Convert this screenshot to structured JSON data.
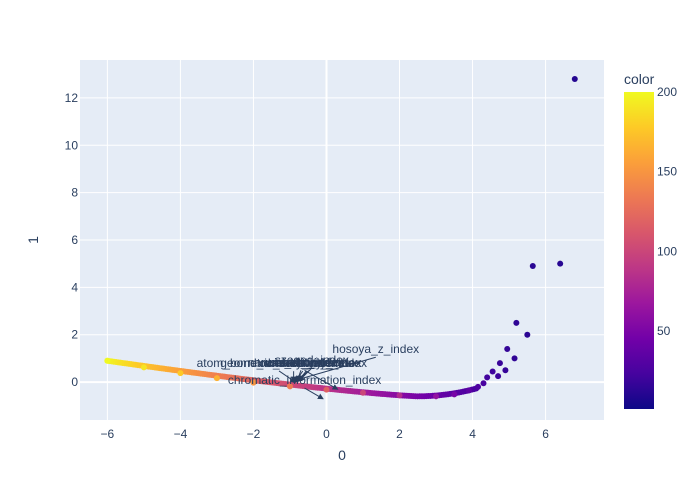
{
  "chart_data": {
    "type": "scatter",
    "xlabel": "0",
    "ylabel": "1",
    "xlim": [
      -6.75,
      7.6
    ],
    "ylim": [
      -1.6,
      13.6
    ],
    "x_ticks": [
      -6,
      -4,
      -2,
      0,
      2,
      4,
      6
    ],
    "y_ticks": [
      0,
      2,
      4,
      6,
      8,
      10,
      12
    ],
    "grid": true,
    "colorbar": {
      "title": "color",
      "range": [
        1,
        200
      ],
      "ticks": [
        50,
        100,
        150,
        200
      ],
      "colorscale": [
        "#0d0887",
        "#46039f",
        "#7201a8",
        "#9c179e",
        "#bd3786",
        "#d8576b",
        "#ed7953",
        "#fb9f3a",
        "#fdca26",
        "#f0f921"
      ]
    },
    "curve": {
      "x_start": -6.0,
      "x_end": 4.1,
      "color_start": 200,
      "color_end": 25,
      "note": "dense curve of points, y = 0.9 at x=-6 decreasing to minimum about -0.6 near x=2.5"
    },
    "points": [
      {
        "x": -6.0,
        "y": 0.9,
        "c": 200
      },
      {
        "x": -5.0,
        "y": 0.62,
        "c": 190
      },
      {
        "x": -4.0,
        "y": 0.38,
        "c": 178
      },
      {
        "x": -3.0,
        "y": 0.17,
        "c": 165
      },
      {
        "x": -2.0,
        "y": -0.02,
        "c": 150
      },
      {
        "x": -1.0,
        "y": -0.18,
        "c": 135
      },
      {
        "x": 0.0,
        "y": -0.32,
        "c": 118
      },
      {
        "x": 1.0,
        "y": -0.45,
        "c": 100
      },
      {
        "x": 2.0,
        "y": -0.56,
        "c": 82
      },
      {
        "x": 3.0,
        "y": -0.6,
        "c": 62
      },
      {
        "x": 3.5,
        "y": -0.52,
        "c": 48
      },
      {
        "x": 3.9,
        "y": -0.35,
        "c": 35
      },
      {
        "x": 4.15,
        "y": -0.2,
        "c": 28
      },
      {
        "x": 4.3,
        "y": -0.05,
        "c": 25
      },
      {
        "x": 4.4,
        "y": 0.2,
        "c": 22
      },
      {
        "x": 4.55,
        "y": 0.45,
        "c": 20
      },
      {
        "x": 4.7,
        "y": 0.25,
        "c": 19
      },
      {
        "x": 4.75,
        "y": 0.8,
        "c": 18
      },
      {
        "x": 4.9,
        "y": 0.5,
        "c": 17
      },
      {
        "x": 4.95,
        "y": 1.4,
        "c": 16
      },
      {
        "x": 5.15,
        "y": 1.0,
        "c": 15
      },
      {
        "x": 5.2,
        "y": 2.5,
        "c": 14
      },
      {
        "x": 5.5,
        "y": 2.0,
        "c": 13
      },
      {
        "x": 5.65,
        "y": 4.9,
        "c": 12
      },
      {
        "x": 6.4,
        "y": 5.0,
        "c": 11
      },
      {
        "x": 6.8,
        "y": 12.8,
        "c": 10
      }
    ],
    "annotations": [
      {
        "text": "hosoya_z_index",
        "tail": [
          1.35,
          1.05
        ],
        "head": [
          -0.8,
          0.1
        ]
      },
      {
        "text": "szeged_index",
        "tail": [
          -0.4,
          0.6
        ],
        "head": [
          -0.75,
          0.05
        ]
      },
      {
        "text": "randic_index",
        "tail": [
          -0.45,
          0.52
        ],
        "head": [
          -0.8,
          0.05
        ]
      },
      {
        "text": "schultz_index",
        "tail": [
          -0.55,
          0.48
        ],
        "head": [
          -0.75,
          0.08
        ]
      },
      {
        "text": "narumi_simple_index",
        "tail": [
          -0.6,
          0.5
        ],
        "head": [
          0.3,
          -0.3
        ]
      },
      {
        "text": "harary_index",
        "tail": [
          -0.65,
          0.47
        ],
        "head": [
          -0.85,
          0.02
        ]
      },
      {
        "text": "connectivity_index",
        "tail": [
          -0.5,
          0.46
        ],
        "head": [
          -0.9,
          0.0
        ]
      },
      {
        "text": "wiener_index",
        "tail": [
          -0.7,
          0.5
        ],
        "head": [
          -0.8,
          0.05
        ]
      },
      {
        "text": "atom_bond_connectivity_index",
        "tail": [
          -1.3,
          0.47
        ],
        "head": [
          -0.85,
          0.0
        ]
      },
      {
        "text": "geometric_arithmetic_index",
        "tail": [
          -0.9,
          0.46
        ],
        "head": [
          -0.9,
          0.03
        ]
      },
      {
        "text": "chromatic_information_index",
        "tail": [
          -0.6,
          -0.25
        ],
        "head": [
          -0.1,
          -0.7
        ]
      }
    ]
  }
}
